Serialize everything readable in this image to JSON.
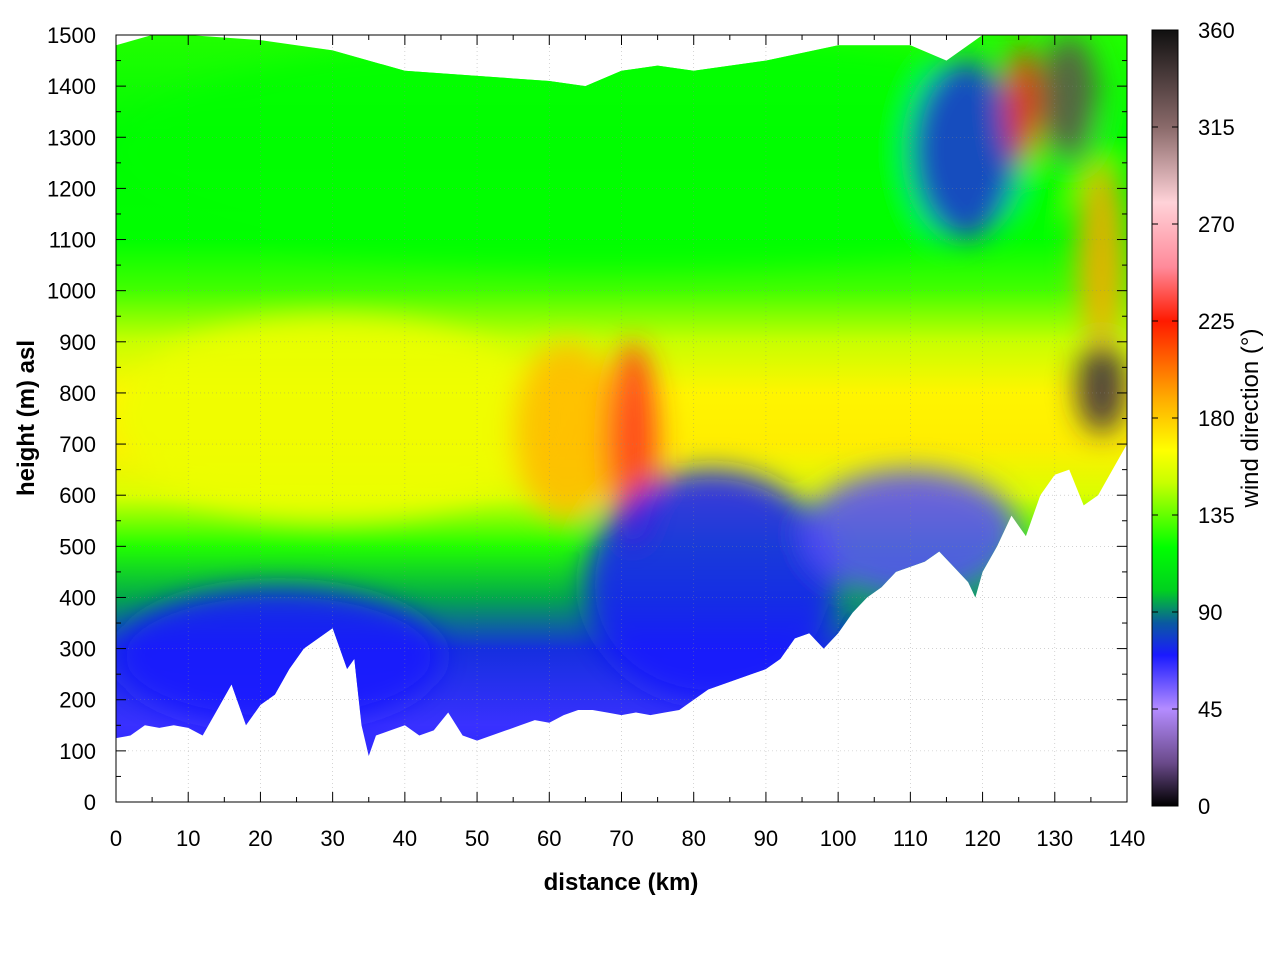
{
  "chart_data": {
    "type": "heatmap",
    "title": "",
    "xlabel": "distance (km)",
    "ylabel": "height (m) asl",
    "xlim": [
      0,
      140
    ],
    "ylim": [
      0,
      1500
    ],
    "x_ticks": [
      0,
      10,
      20,
      30,
      40,
      50,
      60,
      70,
      80,
      90,
      100,
      110,
      120,
      130,
      140
    ],
    "y_ticks": [
      0,
      100,
      200,
      300,
      400,
      500,
      600,
      700,
      800,
      900,
      1000,
      1100,
      1200,
      1300,
      1400,
      1500
    ],
    "grid": true,
    "colorbar": {
      "label": "wind direction (°)",
      "range": [
        0,
        360
      ],
      "ticks": [
        0,
        45,
        90,
        135,
        180,
        225,
        270,
        315,
        360
      ],
      "placement": "right",
      "stops": [
        {
          "value": 0,
          "color": "#000000"
        },
        {
          "value": 20,
          "color": "#6a4a8a"
        },
        {
          "value": 45,
          "color": "#b48cff"
        },
        {
          "value": 70,
          "color": "#1a1aff"
        },
        {
          "value": 85,
          "color": "#0a5aa0"
        },
        {
          "value": 100,
          "color": "#00d020"
        },
        {
          "value": 120,
          "color": "#00ff00"
        },
        {
          "value": 150,
          "color": "#c8ff00"
        },
        {
          "value": 165,
          "color": "#ffff00"
        },
        {
          "value": 190,
          "color": "#ffa800"
        },
        {
          "value": 225,
          "color": "#ff1a00"
        },
        {
          "value": 250,
          "color": "#ff8a9a"
        },
        {
          "value": 280,
          "color": "#ffd2d8"
        },
        {
          "value": 315,
          "color": "#8a6a6a"
        },
        {
          "value": 360,
          "color": "#101010"
        }
      ]
    },
    "terrain": {
      "x": [
        0,
        2,
        4,
        6,
        8,
        10,
        12,
        14,
        16,
        18,
        20,
        22,
        24,
        26,
        28,
        30,
        32,
        33,
        34,
        35,
        36,
        38,
        40,
        42,
        44,
        46,
        48,
        50,
        52,
        54,
        56,
        58,
        60,
        62,
        64,
        66,
        68,
        70,
        72,
        74,
        76,
        78,
        80,
        82,
        84,
        86,
        88,
        90,
        92,
        94,
        96,
        98,
        100,
        102,
        104,
        106,
        108,
        110,
        112,
        114,
        116,
        118,
        119,
        120,
        122,
        124,
        126,
        128,
        130,
        132,
        134,
        136,
        138,
        140
      ],
      "height": [
        125,
        130,
        150,
        145,
        150,
        145,
        130,
        180,
        230,
        150,
        190,
        210,
        260,
        300,
        320,
        340,
        260,
        280,
        150,
        90,
        130,
        140,
        150,
        130,
        140,
        175,
        130,
        120,
        130,
        140,
        150,
        160,
        155,
        170,
        180,
        180,
        175,
        170,
        175,
        170,
        175,
        180,
        200,
        220,
        230,
        240,
        250,
        260,
        280,
        320,
        330,
        300,
        330,
        370,
        400,
        420,
        450,
        460,
        470,
        490,
        460,
        430,
        400,
        450,
        500,
        560,
        520,
        600,
        640,
        650,
        580,
        600,
        650,
        700
      ]
    },
    "top_boundary": {
      "x": [
        0,
        5,
        10,
        20,
        30,
        40,
        50,
        60,
        65,
        70,
        75,
        80,
        90,
        100,
        110,
        115,
        120,
        125,
        130,
        135,
        140
      ],
      "height": [
        1480,
        1500,
        1500,
        1490,
        1470,
        1430,
        1420,
        1410,
        1400,
        1430,
        1440,
        1430,
        1450,
        1480,
        1480,
        1450,
        1500,
        1500,
        1500,
        1500,
        1500
      ]
    },
    "regions": [
      {
        "x": [
          0,
          45
        ],
        "height": [
          150,
          420
        ],
        "direction": 70
      },
      {
        "x": [
          0,
          140
        ],
        "height": [
          1050,
          1500
        ],
        "direction": 120
      },
      {
        "x": [
          0,
          60
        ],
        "height": [
          550,
          950
        ],
        "direction": 160
      },
      {
        "x": [
          55,
          70
        ],
        "height": [
          550,
          900
        ],
        "direction": 185
      },
      {
        "x": [
          68,
          75
        ],
        "height": [
          500,
          900
        ],
        "direction": 230
      },
      {
        "x": [
          65,
          100
        ],
        "height": [
          200,
          650
        ],
        "direction": 70
      },
      {
        "x": [
          95,
          125
        ],
        "height": [
          400,
          650
        ],
        "direction": 60
      },
      {
        "x": [
          110,
          125
        ],
        "height": [
          1100,
          1450
        ],
        "direction": 75
      },
      {
        "x": [
          123,
          128
        ],
        "height": [
          1250,
          1480
        ],
        "direction": 225
      },
      {
        "x": [
          128,
          136
        ],
        "height": [
          1250,
          1500
        ],
        "direction": 330
      },
      {
        "x": [
          133,
          140
        ],
        "height": [
          900,
          1250
        ],
        "direction": 190
      },
      {
        "x": [
          133,
          140
        ],
        "height": [
          720,
          900
        ],
        "direction": 10
      }
    ]
  }
}
